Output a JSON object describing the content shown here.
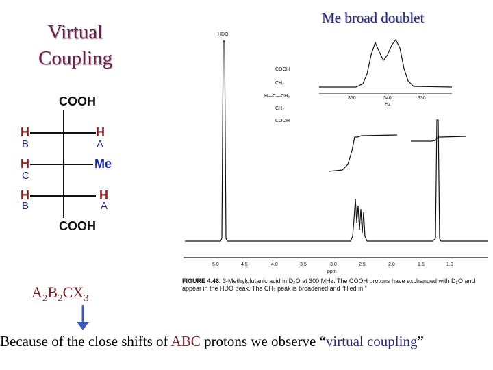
{
  "title": {
    "line1": "Virtual",
    "line2": "Coupling"
  },
  "me_title": "Me broad doublet",
  "structure": {
    "top_group": "COOH",
    "bottom_group": "COOH",
    "rows": [
      {
        "left_atom": "H",
        "left_label": "B",
        "right_atom": "H",
        "right_label": "A"
      },
      {
        "left_atom": "H",
        "left_label": "C",
        "right_atom": "Me",
        "right_label": ""
      },
      {
        "left_atom": "H",
        "left_label": "B",
        "right_atom": "H",
        "right_label": "A"
      }
    ]
  },
  "formula": {
    "a": "A",
    "a_sub": "2",
    "b": "B",
    "b_sub": "2",
    "c": "C",
    "x": "X",
    "x_sub": "3"
  },
  "caption": {
    "prefix": "Because of the close shifts of ",
    "abc": "ABC",
    "middle": " protons we observe “",
    "vc": "virtual coupling",
    "suffix": "”"
  },
  "figure_caption": {
    "label": "FIGURE 4.46.",
    "text": "3-Methylglutanic acid in D₂O at 300 MHz. The COOH protons have exchanged with D₂O and appear in the HDO peak. The CH₃ peak is broadened and “filled in.”"
  },
  "spectrum": {
    "hdo_label": "HDO",
    "axis_ticks": [
      "5.0",
      "4.5",
      "4.0",
      "3.5",
      "3.0",
      "2.5",
      "2.0",
      "1.5",
      "1.0"
    ],
    "axis_unit": "ppm",
    "inset_ticks": [
      "350",
      "340",
      "330"
    ],
    "inset_unit": "Hz",
    "inset_structure": [
      "COOH",
      "CH₂",
      "H—C—CH₃",
      "CH₂",
      "COOH"
    ]
  },
  "colors": {
    "title": "#6a1f4a",
    "me_title": "#2b2b78",
    "arrow": "#3d5bb5"
  }
}
